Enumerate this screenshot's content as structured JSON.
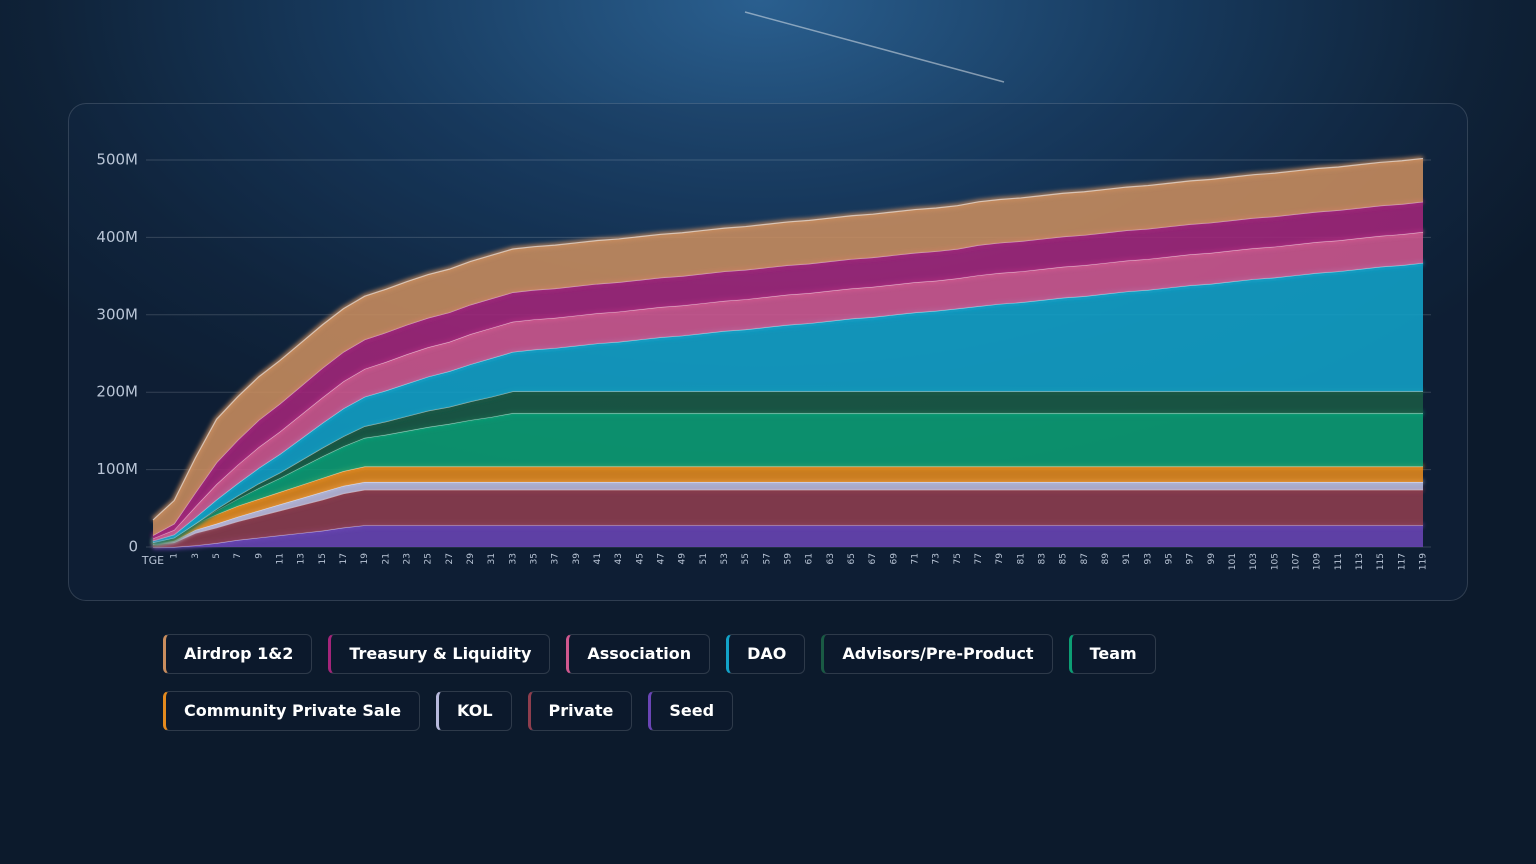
{
  "chart_data": {
    "type": "stacked_area",
    "categories": [
      "TGE",
      "1",
      "3",
      "5",
      "7",
      "9",
      "11",
      "13",
      "15",
      "17",
      "19",
      "21",
      "23",
      "25",
      "27",
      "29",
      "31",
      "33",
      "35",
      "37",
      "39",
      "41",
      "43",
      "45",
      "47",
      "49",
      "51",
      "53",
      "55",
      "57",
      "59",
      "61",
      "63",
      "65",
      "67",
      "69",
      "71",
      "73",
      "75",
      "77",
      "79",
      "81",
      "83",
      "85",
      "87",
      "89",
      "91",
      "93",
      "95",
      "97",
      "99",
      "101",
      "103",
      "105",
      "107",
      "109",
      "111",
      "113",
      "115",
      "117",
      "119"
    ],
    "ylim": [
      0,
      510
    ],
    "yticks": [
      0,
      {
        "value": 100,
        "label": "100M"
      },
      {
        "value": 200,
        "label": "200M"
      },
      {
        "value": 300,
        "label": "300M"
      },
      {
        "value": 400,
        "label": "400M"
      },
      {
        "value": 500,
        "label": "500M"
      }
    ],
    "grid": true,
    "series": [
      {
        "name": "Airdrop 1&2",
        "color": "#c98d5e",
        "values": [
          20,
          30,
          45,
          56,
          56,
          56,
          56,
          56,
          56,
          56,
          56,
          56,
          56,
          56,
          56,
          56,
          56,
          56,
          56,
          56,
          56,
          56,
          56,
          56,
          56,
          56,
          56,
          56,
          56,
          56,
          56,
          56,
          56,
          56,
          56,
          56,
          56,
          56,
          56,
          56,
          56,
          56,
          56,
          56,
          56,
          56,
          56,
          56,
          56,
          56,
          56,
          56,
          56,
          56,
          56,
          56,
          56,
          56,
          56,
          56,
          56
        ]
      },
      {
        "name": "Treasury & Liquidity",
        "color": "#a3257a",
        "values": [
          4,
          8,
          18,
          28,
          32,
          35,
          36,
          37,
          38,
          38,
          38,
          38,
          38,
          38,
          38,
          38,
          38,
          38,
          38,
          38,
          38,
          38,
          38,
          38,
          38,
          38,
          38,
          38,
          38,
          38,
          38,
          38,
          38,
          38,
          38,
          38,
          38,
          38,
          38,
          39,
          39,
          39,
          39,
          39,
          39,
          39,
          39,
          39,
          39,
          39,
          39,
          39,
          39,
          39,
          39,
          39,
          39,
          39,
          39,
          39,
          39
        ]
      },
      {
        "name": "Association",
        "color": "#d0588f",
        "values": [
          3,
          6,
          14,
          20,
          24,
          27,
          29,
          31,
          33,
          35,
          36,
          37,
          38,
          38,
          38,
          39,
          39,
          39,
          39,
          39,
          39,
          39,
          39,
          39,
          39,
          39,
          39,
          39,
          39,
          39,
          39,
          39,
          39,
          39,
          39,
          39,
          39,
          39,
          39,
          40,
          40,
          40,
          40,
          40,
          40,
          40,
          40,
          40,
          40,
          40,
          40,
          40,
          40,
          40,
          40,
          40,
          40,
          40,
          40,
          40,
          40
        ]
      },
      {
        "name": "DAO",
        "color": "#12a2c8",
        "values": [
          2,
          4,
          8,
          12,
          16,
          20,
          24,
          28,
          32,
          36,
          38,
          40,
          42,
          44,
          46,
          48,
          50,
          51,
          54,
          56,
          59,
          62,
          64,
          67,
          70,
          72,
          75,
          78,
          80,
          83,
          86,
          88,
          91,
          94,
          96,
          99,
          102,
          104,
          107,
          110,
          113,
          115,
          118,
          121,
          123,
          126,
          129,
          131,
          134,
          137,
          139,
          142,
          145,
          147,
          150,
          153,
          155,
          158,
          161,
          163,
          166
        ]
      },
      {
        "name": "Advisors/Pre-Product",
        "color": "#1a5a44",
        "values": [
          0,
          0,
          0,
          2,
          4,
          6,
          7,
          9,
          11,
          13,
          15,
          17,
          19,
          21,
          22,
          24,
          26,
          28,
          28,
          28,
          28,
          28,
          28,
          28,
          28,
          28,
          28,
          28,
          28,
          28,
          28,
          28,
          28,
          28,
          28,
          28,
          28,
          28,
          28,
          28,
          28,
          28,
          28,
          28,
          28,
          28,
          28,
          28,
          28,
          28,
          28,
          28,
          28,
          28,
          28,
          28,
          28,
          28,
          28,
          28,
          28
        ]
      },
      {
        "name": "Team",
        "color": "#0d9e74",
        "values": [
          0,
          0,
          0,
          5,
          9,
          14,
          18,
          23,
          28,
          32,
          37,
          41,
          46,
          51,
          55,
          60,
          64,
          69,
          69,
          69,
          69,
          69,
          69,
          69,
          69,
          69,
          69,
          69,
          69,
          69,
          69,
          69,
          69,
          69,
          69,
          69,
          69,
          69,
          69,
          69,
          69,
          69,
          69,
          69,
          69,
          69,
          69,
          69,
          69,
          69,
          69,
          69,
          69,
          69,
          69,
          69,
          69,
          69,
          69,
          69,
          69
        ]
      },
      {
        "name": "Community Private Sale",
        "color": "#e48a1e",
        "values": [
          2,
          4,
          8,
          12,
          14,
          15,
          16,
          17,
          18,
          19,
          20,
          20,
          20,
          20,
          20,
          20,
          20,
          20,
          20,
          20,
          20,
          20,
          20,
          20,
          20,
          20,
          20,
          20,
          20,
          20,
          20,
          20,
          20,
          20,
          20,
          20,
          20,
          20,
          20,
          20,
          20,
          20,
          20,
          20,
          20,
          20,
          20,
          20,
          20,
          20,
          20,
          20,
          20,
          20,
          20,
          20,
          20,
          20,
          20,
          20,
          20
        ]
      },
      {
        "name": "KOL",
        "color": "#b7b9dc",
        "values": [
          1,
          2,
          4,
          5,
          6,
          7,
          8,
          9,
          10,
          10,
          10,
          10,
          10,
          10,
          10,
          10,
          10,
          10,
          10,
          10,
          10,
          10,
          10,
          10,
          10,
          10,
          10,
          10,
          10,
          10,
          10,
          10,
          10,
          10,
          10,
          10,
          10,
          10,
          10,
          10,
          10,
          10,
          10,
          10,
          10,
          10,
          10,
          10,
          10,
          10,
          10,
          10,
          10,
          10,
          10,
          10,
          10,
          10,
          10,
          10,
          10
        ]
      },
      {
        "name": "Private",
        "color": "#8e3e4e",
        "values": [
          3,
          6,
          16,
          20,
          24,
          28,
          32,
          36,
          40,
          44,
          46,
          46,
          46,
          46,
          46,
          46,
          46,
          46,
          46,
          46,
          46,
          46,
          46,
          46,
          46,
          46,
          46,
          46,
          46,
          46,
          46,
          46,
          46,
          46,
          46,
          46,
          46,
          46,
          46,
          46,
          46,
          46,
          46,
          46,
          46,
          46,
          46,
          46,
          46,
          46,
          46,
          46,
          46,
          46,
          46,
          46,
          46,
          46,
          46,
          46,
          46
        ]
      },
      {
        "name": "Seed",
        "color": "#6a45b5",
        "values": [
          0,
          0,
          2,
          5,
          9,
          12,
          15,
          18,
          21,
          25,
          28,
          28,
          28,
          28,
          28,
          28,
          28,
          28,
          28,
          28,
          28,
          28,
          28,
          28,
          28,
          28,
          28,
          28,
          28,
          28,
          28,
          28,
          28,
          28,
          28,
          28,
          28,
          28,
          28,
          28,
          28,
          28,
          28,
          28,
          28,
          28,
          28,
          28,
          28,
          28,
          28,
          28,
          28,
          28,
          28,
          28,
          28,
          28,
          28,
          28,
          28
        ]
      }
    ]
  }
}
